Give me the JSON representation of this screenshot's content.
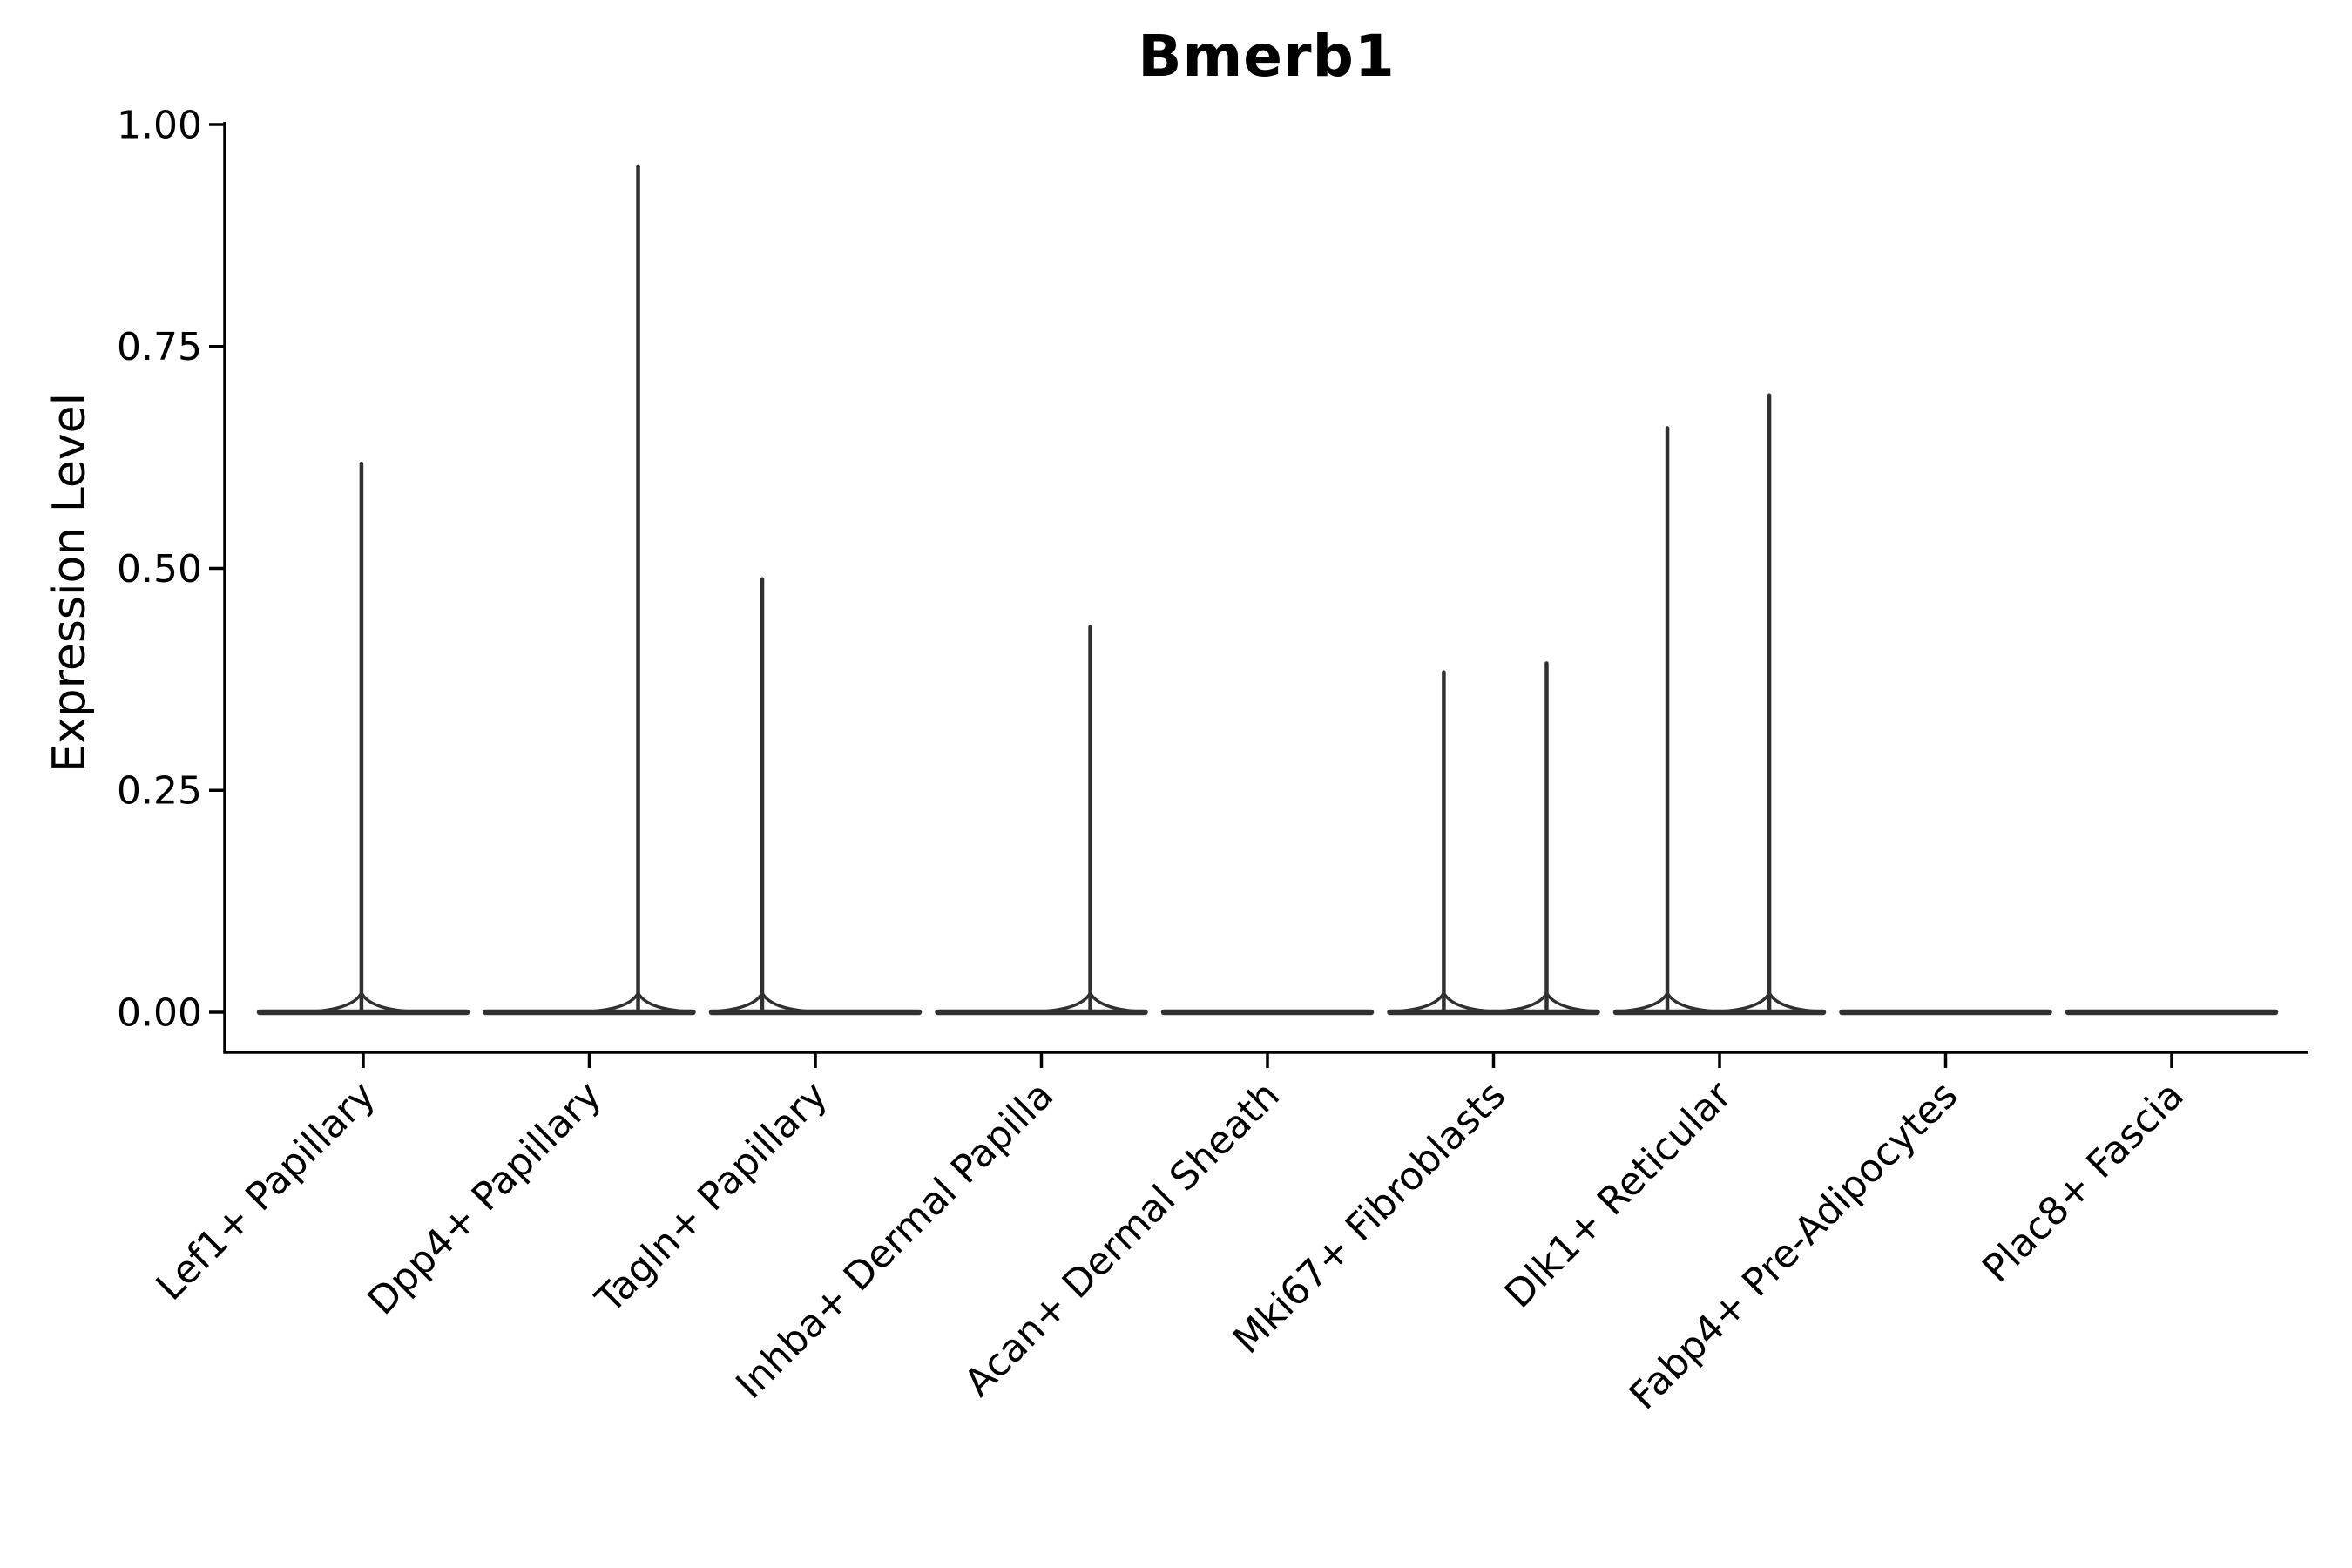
{
  "chart_data": {
    "type": "violin",
    "title": "Bmerb1",
    "ylabel": "Expression Level",
    "xlabel": "",
    "grid": false,
    "legend": "none",
    "ylim": [
      -0.05,
      1.0
    ],
    "ytick_labels": [
      "0.00",
      "0.25",
      "0.50",
      "0.75",
      "1.00"
    ],
    "ytick_values": [
      0.0,
      0.25,
      0.5,
      0.75,
      1.0
    ],
    "categories": [
      "Lef1+ Papillary",
      "Dpp4+ Papillary",
      "Tagln+ Papillary",
      "Inhba+ Dermal Papilla",
      "Acan+ Dermal Sheath",
      "Mki67+ Fibroblasts",
      "Dlk1+ Reticular",
      "Fabp4+ Pre-Adipocytes",
      "Plac8+ Fascia"
    ],
    "violins": [
      {
        "category": "Lef1+ Papillary",
        "baseline_value": 0,
        "expressing_points": [
          {
            "value": 0.62,
            "offset": -0.008
          }
        ]
      },
      {
        "category": "Dpp4+ Papillary",
        "baseline_value": 0,
        "expressing_points": [
          {
            "value": 0.955,
            "offset": 0.216
          }
        ]
      },
      {
        "category": "Tagln+ Papillary",
        "baseline_value": 0,
        "expressing_points": [
          {
            "value": 0.49,
            "offset": -0.235
          }
        ]
      },
      {
        "category": "Inhba+ Dermal Papilla",
        "baseline_value": 0,
        "expressing_points": [
          {
            "value": 0.436,
            "offset": 0.216
          }
        ]
      },
      {
        "category": "Acan+ Dermal Sheath",
        "baseline_value": 0,
        "expressing_points": []
      },
      {
        "category": "Mki67+ Fibroblasts",
        "baseline_value": 0,
        "expressing_points": [
          {
            "value": 0.385,
            "offset": -0.22
          },
          {
            "value": 0.395,
            "offset": 0.235
          }
        ]
      },
      {
        "category": "Dlk1+ Reticular",
        "baseline_value": 0,
        "expressing_points": [
          {
            "value": 0.66,
            "offset": -0.231
          },
          {
            "value": 0.697,
            "offset": 0.22
          }
        ]
      },
      {
        "category": "Fabp4+ Pre-Adipocytes",
        "baseline_value": 0,
        "expressing_points": []
      },
      {
        "category": "Plac8+ Fascia",
        "baseline_value": 0,
        "expressing_points": []
      }
    ],
    "violin_color": "#303030",
    "axis_color": "#000000"
  }
}
